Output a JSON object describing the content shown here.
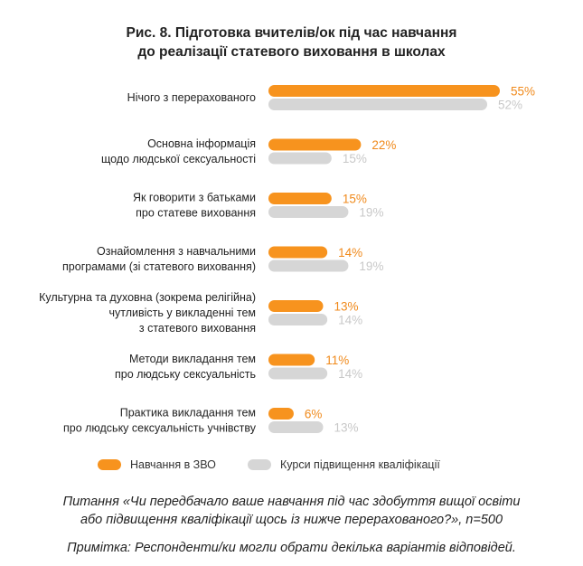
{
  "title_line1": "Рис. 8. Підготовка вчителів/ок під час навчання",
  "title_line2": "до реалізації статевого виховання в школах",
  "colors": {
    "series1": "#F7931E",
    "series2": "#D6D6D6",
    "label1": "#F08A1C",
    "label2": "#C8C8C8"
  },
  "chart_data": {
    "type": "bar",
    "orientation": "horizontal",
    "categories": [
      [
        "Нічого з перерахованого"
      ],
      [
        "Основна інформація",
        "щодо людської сексуальності"
      ],
      [
        "Як говорити з батьками",
        "про статеве виховання"
      ],
      [
        "Ознайомлення з навчальними",
        "програмами (зі статевого виховання)"
      ],
      [
        "Культурна та духовна (зокрема релігійна)",
        "чутливість у викладенні тем",
        "з статевого виховання"
      ],
      [
        "Методи викладання тем",
        "про людську сексуальність"
      ],
      [
        "Практика викладання тем",
        "про людську сексуальність учнівству"
      ]
    ],
    "series": [
      {
        "name": "Навчання в ЗВО",
        "values": [
          55,
          22,
          15,
          14,
          13,
          11,
          6
        ]
      },
      {
        "name": "Курси підвищення кваліфікації",
        "values": [
          52,
          15,
          19,
          19,
          14,
          14,
          13
        ]
      }
    ],
    "value_suffix": "%",
    "xlim": [
      0,
      55
    ]
  },
  "footnote_line1": "Питання «Чи передбачало ваше навчання під час здобуття вищої освіти",
  "footnote_line2": "або підвищення кваліфікації щось із нижче перерахованого?», n=500",
  "footnote_note": "Примітка: Респонденти/ки могли обрати декілька варіантів відповідей."
}
